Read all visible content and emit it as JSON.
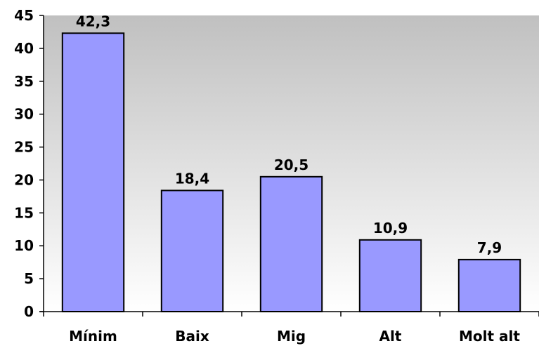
{
  "chart_data": {
    "type": "bar",
    "categories": [
      "Mínim",
      "Baix",
      "Mig",
      "Alt",
      "Molt alt"
    ],
    "values": [
      42.3,
      18.4,
      20.5,
      10.9,
      7.9
    ],
    "data_labels": [
      "42,3",
      "18,4",
      "20,5",
      "10,9",
      "7,9"
    ],
    "ylim": [
      0,
      45
    ],
    "yticks": [
      0,
      5,
      10,
      15,
      20,
      25,
      30,
      35,
      40,
      45
    ],
    "ytick_labels": [
      "0",
      "5",
      "10",
      "15",
      "20",
      "25",
      "30",
      "35",
      "40",
      "45"
    ],
    "grid": false,
    "legend": false,
    "title": "",
    "xlabel": "",
    "ylabel": "",
    "colors": {
      "bar_fill": "#9999ff",
      "bar_stroke": "#000000",
      "plot_bg_top": "#c0c0c0",
      "plot_bg_bottom": "#ffffff"
    }
  }
}
